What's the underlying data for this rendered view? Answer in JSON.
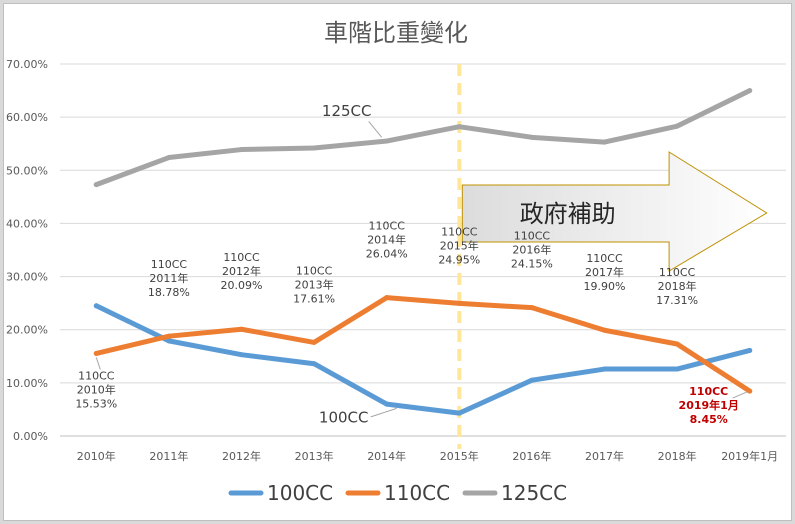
{
  "chart_data": {
    "type": "line",
    "title": "車階比重變化",
    "categories": [
      "2010年",
      "2011年",
      "2012年",
      "2013年",
      "2014年",
      "2015年",
      "2016年",
      "2017年",
      "2018年",
      "2019年1月"
    ],
    "ylim": [
      0,
      70
    ],
    "y_ticks": [
      "0.00%",
      "10.00%",
      "20.00%",
      "30.00%",
      "40.00%",
      "50.00%",
      "60.00%",
      "70.00%"
    ],
    "grid": true,
    "legend_position": "bottom",
    "series": [
      {
        "name": "100CC",
        "color": "#5b9bd5",
        "values": [
          24.5,
          17.9,
          15.3,
          13.6,
          6.0,
          4.3,
          10.5,
          12.6,
          12.6,
          16.1
        ]
      },
      {
        "name": "110CC",
        "color": "#ed7d31",
        "values": [
          15.53,
          18.78,
          20.09,
          17.61,
          26.04,
          24.95,
          24.15,
          19.9,
          17.31,
          8.45
        ]
      },
      {
        "name": "125CC",
        "color": "#a5a5a5",
        "values": [
          47.3,
          52.4,
          53.9,
          54.2,
          55.5,
          58.2,
          56.2,
          55.3,
          58.3,
          65.0
        ]
      }
    ],
    "data_labels_110": [
      [
        "110CC",
        "2010年",
        "15.53%"
      ],
      [
        "110CC",
        "2011年",
        "18.78%"
      ],
      [
        "110CC",
        "2012年",
        "20.09%"
      ],
      [
        "110CC",
        "2013年",
        "17.61%"
      ],
      [
        "110CC",
        "2014年",
        "26.04%"
      ],
      [
        "110CC",
        "2015年",
        "24.95%"
      ],
      [
        "110CC",
        "2016年",
        "24.15%"
      ],
      [
        "110CC",
        "2017年",
        "19.90%"
      ],
      [
        "110CC",
        "2018年",
        "17.31%"
      ],
      [
        "110CC",
        "2019年1月",
        "8.45%"
      ]
    ],
    "annotations": {
      "series_label_125": "125CC",
      "series_label_100": "100CC",
      "banner_text": "政府補助",
      "divider_category": "2015年",
      "divider_color": "#ffe699"
    }
  }
}
